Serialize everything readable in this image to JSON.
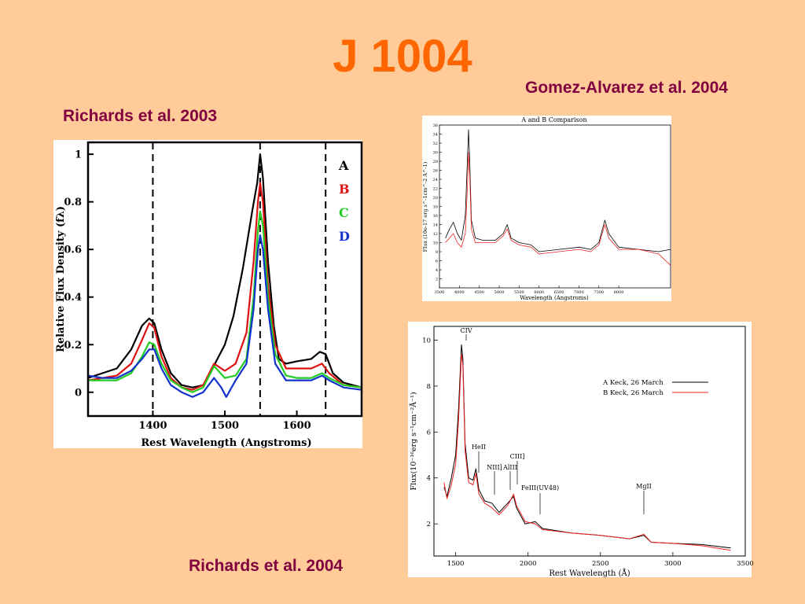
{
  "slide": {
    "title": "J 1004",
    "captions": {
      "left_top": "Richards et al. 2003",
      "right_top": "Gomez-Alvarez et al. 2004",
      "bottom": "Richards et al. 2004"
    }
  },
  "colors": {
    "background": "#ffcc99",
    "title": "#ff6600",
    "caption": "#800040"
  },
  "chart_data": [
    {
      "type": "line",
      "xlabel": "Rest Wavelength (Angstroms)",
      "ylabel": "Relative Flux Density (fλ)",
      "xlim": [
        1310,
        1690
      ],
      "ylim": [
        -0.1,
        1.05
      ],
      "xticks": [
        1400,
        1500,
        1600
      ],
      "yticks": [
        0,
        0.2,
        0.4,
        0.6,
        0.8,
        1
      ],
      "yticklabels": [
        "0",
        "0.2",
        "0.4",
        "0.6",
        "0.8",
        "1"
      ],
      "vlines": [
        1400,
        1549,
        1640
      ],
      "series": [
        {
          "name": "A",
          "color": "#000000",
          "points": [
            [
              1310,
              0.06
            ],
            [
              1330,
              0.08
            ],
            [
              1350,
              0.1
            ],
            [
              1370,
              0.18
            ],
            [
              1385,
              0.28
            ],
            [
              1395,
              0.31
            ],
            [
              1402,
              0.29
            ],
            [
              1412,
              0.18
            ],
            [
              1425,
              0.08
            ],
            [
              1440,
              0.03
            ],
            [
              1455,
              0.02
            ],
            [
              1470,
              0.03
            ],
            [
              1480,
              0.08
            ],
            [
              1488,
              0.13
            ],
            [
              1500,
              0.2
            ],
            [
              1512,
              0.32
            ],
            [
              1525,
              0.52
            ],
            [
              1538,
              0.76
            ],
            [
              1545,
              0.88
            ],
            [
              1549,
              1.0
            ],
            [
              1553,
              0.9
            ],
            [
              1560,
              0.55
            ],
            [
              1568,
              0.28
            ],
            [
              1575,
              0.14
            ],
            [
              1585,
              0.12
            ],
            [
              1600,
              0.13
            ],
            [
              1620,
              0.14
            ],
            [
              1632,
              0.17
            ],
            [
              1640,
              0.16
            ],
            [
              1650,
              0.08
            ],
            [
              1665,
              0.04
            ],
            [
              1690,
              0.02
            ]
          ]
        },
        {
          "name": "B",
          "color": "#dd1111",
          "points": [
            [
              1310,
              0.05
            ],
            [
              1330,
              0.06
            ],
            [
              1350,
              0.07
            ],
            [
              1370,
              0.12
            ],
            [
              1385,
              0.22
            ],
            [
              1395,
              0.29
            ],
            [
              1402,
              0.27
            ],
            [
              1412,
              0.15
            ],
            [
              1425,
              0.06
            ],
            [
              1440,
              0.02
            ],
            [
              1455,
              0.01
            ],
            [
              1470,
              0.03
            ],
            [
              1485,
              0.12
            ],
            [
              1500,
              0.09
            ],
            [
              1515,
              0.12
            ],
            [
              1530,
              0.25
            ],
            [
              1540,
              0.55
            ],
            [
              1546,
              0.8
            ],
            [
              1549,
              0.88
            ],
            [
              1553,
              0.8
            ],
            [
              1560,
              0.45
            ],
            [
              1570,
              0.2
            ],
            [
              1585,
              0.1
            ],
            [
              1600,
              0.1
            ],
            [
              1620,
              0.1
            ],
            [
              1635,
              0.12
            ],
            [
              1645,
              0.08
            ],
            [
              1665,
              0.03
            ],
            [
              1690,
              0.02
            ]
          ]
        },
        {
          "name": "C",
          "color": "#22cc22",
          "points": [
            [
              1310,
              0.05
            ],
            [
              1330,
              0.05
            ],
            [
              1350,
              0.05
            ],
            [
              1370,
              0.08
            ],
            [
              1385,
              0.15
            ],
            [
              1395,
              0.21
            ],
            [
              1402,
              0.2
            ],
            [
              1412,
              0.12
            ],
            [
              1425,
              0.05
            ],
            [
              1440,
              0.02
            ],
            [
              1455,
              0.0
            ],
            [
              1470,
              0.02
            ],
            [
              1485,
              0.11
            ],
            [
              1500,
              0.06
            ],
            [
              1515,
              0.07
            ],
            [
              1530,
              0.14
            ],
            [
              1540,
              0.4
            ],
            [
              1546,
              0.68
            ],
            [
              1549,
              0.76
            ],
            [
              1553,
              0.7
            ],
            [
              1560,
              0.4
            ],
            [
              1570,
              0.16
            ],
            [
              1585,
              0.07
            ],
            [
              1600,
              0.06
            ],
            [
              1620,
              0.06
            ],
            [
              1635,
              0.08
            ],
            [
              1645,
              0.06
            ],
            [
              1665,
              0.03
            ],
            [
              1690,
              0.02
            ]
          ]
        },
        {
          "name": "D",
          "color": "#1133cc",
          "points": [
            [
              1310,
              0.07
            ],
            [
              1330,
              0.06
            ],
            [
              1350,
              0.06
            ],
            [
              1370,
              0.09
            ],
            [
              1385,
              0.14
            ],
            [
              1395,
              0.18
            ],
            [
              1402,
              0.18
            ],
            [
              1412,
              0.1
            ],
            [
              1425,
              0.03
            ],
            [
              1440,
              0.0
            ],
            [
              1455,
              -0.02
            ],
            [
              1470,
              0.0
            ],
            [
              1485,
              0.06
            ],
            [
              1495,
              0.02
            ],
            [
              1502,
              -0.02
            ],
            [
              1515,
              0.05
            ],
            [
              1530,
              0.12
            ],
            [
              1540,
              0.35
            ],
            [
              1546,
              0.6
            ],
            [
              1549,
              0.66
            ],
            [
              1553,
              0.6
            ],
            [
              1560,
              0.35
            ],
            [
              1570,
              0.12
            ],
            [
              1585,
              0.05
            ],
            [
              1600,
              0.05
            ],
            [
              1620,
              0.05
            ],
            [
              1635,
              0.07
            ],
            [
              1645,
              0.05
            ],
            [
              1665,
              0.02
            ],
            [
              1690,
              0.01
            ]
          ]
        }
      ]
    },
    {
      "type": "line",
      "title": "A and B Comparison",
      "xlabel": "Wavelength (Angstroms)",
      "ylabel": "Flux (10e-17 erg s^-1cm^-2 A^-1)",
      "xlim": [
        3500,
        9300
      ],
      "ylim": [
        0,
        36
      ],
      "xticks": [
        3500,
        4000,
        4500,
        5000,
        5500,
        6000,
        6500,
        7000,
        7500,
        8000
      ],
      "yticks": [
        2,
        4,
        6,
        8,
        10,
        12,
        14,
        16,
        18,
        20,
        22,
        24,
        26,
        28,
        30,
        32,
        34,
        36
      ],
      "series": [
        {
          "name": "A",
          "color": "#000000",
          "points": [
            [
              3650,
              11
            ],
            [
              3750,
              13
            ],
            [
              3850,
              14.5
            ],
            [
              3950,
              12
            ],
            [
              4050,
              10.5
            ],
            [
              4150,
              16
            ],
            [
              4200,
              28
            ],
            [
              4230,
              35
            ],
            [
              4260,
              28
            ],
            [
              4300,
              15
            ],
            [
              4400,
              11
            ],
            [
              4600,
              10.5
            ],
            [
              4900,
              10.5
            ],
            [
              5100,
              12
            ],
            [
              5200,
              14
            ],
            [
              5300,
              11
            ],
            [
              5500,
              10
            ],
            [
              5800,
              9.5
            ],
            [
              6000,
              8
            ],
            [
              6500,
              8.5
            ],
            [
              7000,
              9
            ],
            [
              7300,
              8.5
            ],
            [
              7500,
              10
            ],
            [
              7650,
              15
            ],
            [
              7750,
              12
            ],
            [
              8000,
              9
            ],
            [
              8500,
              8.5
            ],
            [
              9000,
              8
            ],
            [
              9300,
              8.5
            ]
          ]
        },
        {
          "name": "B",
          "color": "#ee2222",
          "points": [
            [
              3650,
              10
            ],
            [
              3750,
              11
            ],
            [
              3850,
              12
            ],
            [
              3950,
              10
            ],
            [
              4050,
              9
            ],
            [
              4150,
              12
            ],
            [
              4200,
              22
            ],
            [
              4230,
              30
            ],
            [
              4260,
              25
            ],
            [
              4300,
              13
            ],
            [
              4400,
              10
            ],
            [
              4600,
              10
            ],
            [
              4900,
              10
            ],
            [
              5100,
              11.5
            ],
            [
              5200,
              13
            ],
            [
              5300,
              10.5
            ],
            [
              5500,
              9.5
            ],
            [
              5800,
              9
            ],
            [
              6000,
              7.5
            ],
            [
              6500,
              8
            ],
            [
              7000,
              8.5
            ],
            [
              7300,
              8
            ],
            [
              7500,
              9.5
            ],
            [
              7650,
              14
            ],
            [
              7750,
              11
            ],
            [
              8000,
              8.5
            ],
            [
              8500,
              8.5
            ],
            [
              9000,
              7.5
            ],
            [
              9300,
              5
            ]
          ]
        }
      ]
    },
    {
      "type": "line",
      "xlabel": "Rest Wavelength (Å)",
      "ylabel": "Flux(10⁻¹⁶erg s⁻¹cm⁻²Å⁻¹)",
      "xlim": [
        1350,
        3500
      ],
      "ylim": [
        0.6,
        10.6
      ],
      "xticks": [
        1500,
        2000,
        2500,
        3000,
        3500
      ],
      "yticks": [
        2,
        4,
        6,
        8,
        10
      ],
      "legend": [
        "A Keck, 26 March",
        "B Keck, 26 March"
      ],
      "line_labels": [
        "CIV",
        "HeII",
        "NIII]",
        "AlIII",
        "CIII]",
        "FeIII(UV48)",
        "MgII"
      ],
      "series": [
        {
          "name": "A Keck, 26 March",
          "color": "#000000",
          "points": [
            [
              1420,
              3.6
            ],
            [
              1440,
              3.2
            ],
            [
              1470,
              4.0
            ],
            [
              1500,
              5.0
            ],
            [
              1520,
              7.0
            ],
            [
              1540,
              9.8
            ],
            [
              1550,
              9.2
            ],
            [
              1565,
              5.5
            ],
            [
              1590,
              4.0
            ],
            [
              1620,
              3.9
            ],
            [
              1640,
              4.4
            ],
            [
              1660,
              3.5
            ],
            [
              1700,
              3.0
            ],
            [
              1750,
              2.9
            ],
            [
              1800,
              2.5
            ],
            [
              1860,
              2.9
            ],
            [
              1900,
              3.2
            ],
            [
              1920,
              2.7
            ],
            [
              1980,
              2.0
            ],
            [
              2050,
              2.1
            ],
            [
              2100,
              1.8
            ],
            [
              2300,
              1.6
            ],
            [
              2500,
              1.5
            ],
            [
              2700,
              1.35
            ],
            [
              2800,
              1.5
            ],
            [
              2850,
              1.2
            ],
            [
              3000,
              1.15
            ],
            [
              3200,
              1.1
            ],
            [
              3400,
              0.95
            ]
          ]
        },
        {
          "name": "B Keck, 26 March",
          "color": "#ee2222",
          "points": [
            [
              1420,
              3.8
            ],
            [
              1440,
              3.1
            ],
            [
              1470,
              3.7
            ],
            [
              1500,
              4.6
            ],
            [
              1520,
              6.5
            ],
            [
              1540,
              9.4
            ],
            [
              1550,
              8.9
            ],
            [
              1565,
              5.2
            ],
            [
              1590,
              3.8
            ],
            [
              1620,
              3.7
            ],
            [
              1640,
              4.2
            ],
            [
              1660,
              3.3
            ],
            [
              1700,
              2.9
            ],
            [
              1750,
              2.7
            ],
            [
              1800,
              2.4
            ],
            [
              1860,
              2.8
            ],
            [
              1900,
              3.3
            ],
            [
              1920,
              2.8
            ],
            [
              1980,
              2.1
            ],
            [
              2050,
              2.0
            ],
            [
              2100,
              1.75
            ],
            [
              2300,
              1.6
            ],
            [
              2500,
              1.5
            ],
            [
              2700,
              1.35
            ],
            [
              2800,
              1.55
            ],
            [
              2850,
              1.2
            ],
            [
              3000,
              1.15
            ],
            [
              3200,
              1.05
            ],
            [
              3400,
              0.85
            ]
          ]
        }
      ]
    }
  ],
  "panel_text": {
    "p1_legend": [
      "A",
      "B",
      "C",
      "D"
    ],
    "p3_labels": [
      "CIV",
      "HeII",
      "NIII]",
      "AlIII",
      "CIII]",
      "FeIII(UV48)",
      "MgII"
    ]
  }
}
